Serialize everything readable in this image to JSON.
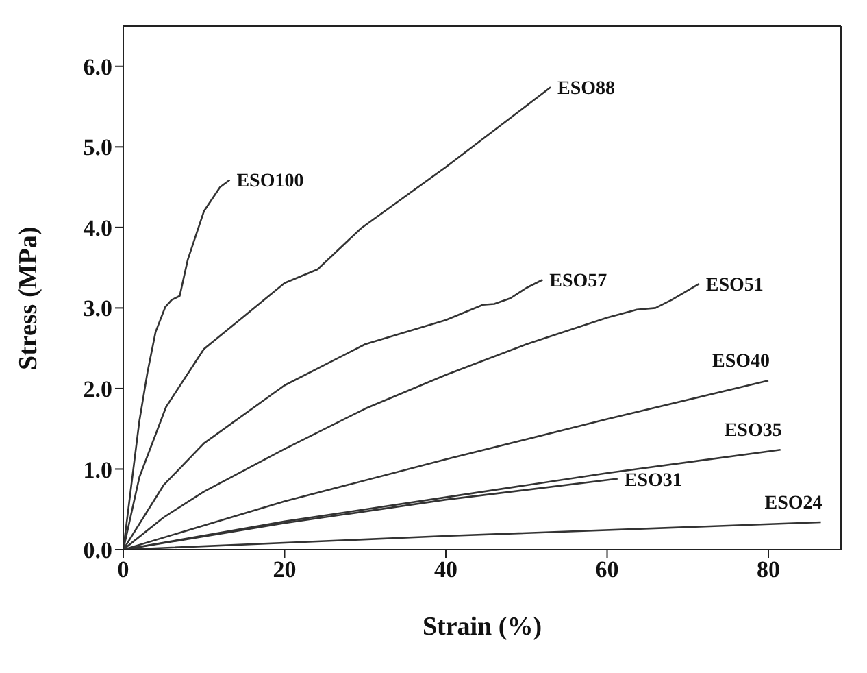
{
  "chart_data": {
    "type": "line",
    "xlabel": "Strain (%)",
    "ylabel": "Stress (MPa)",
    "xlim": [
      0,
      89
    ],
    "xticks": [
      0,
      20,
      40,
      60,
      80
    ],
    "ylim": [
      0,
      6.5
    ],
    "yticks": [
      {
        "value": 0,
        "label": "0.0"
      },
      {
        "value": 1,
        "label": "1.0"
      },
      {
        "value": 2,
        "label": "2.0"
      },
      {
        "value": 3,
        "label": "3.0"
      },
      {
        "value": 4,
        "label": "4.0"
      },
      {
        "value": 5,
        "label": "5.0"
      },
      {
        "value": 6,
        "label": "6.0"
      }
    ],
    "legend": false,
    "marker": "none",
    "line_style": "solid",
    "series": [
      {
        "name": "ESO100",
        "color": "#333333",
        "x": [
          0,
          1,
          2,
          3,
          4,
          5.2,
          6,
          7,
          8,
          9,
          10,
          12,
          13.2
        ],
        "values": [
          0,
          0.8,
          1.6,
          2.2,
          2.7,
          3.01,
          3.1,
          3.15,
          3.6,
          3.9,
          4.2,
          4.5,
          4.59
        ]
      },
      {
        "name": "ESO88",
        "color": "#333333",
        "x": [
          0,
          2,
          5.3,
          10,
          15,
          20,
          24.1,
          29.5,
          40,
          53
        ],
        "values": [
          0,
          0.9,
          1.77,
          2.49,
          2.9,
          3.31,
          3.48,
          3.99,
          4.75,
          5.74
        ]
      },
      {
        "name": "ESO57",
        "color": "#333333",
        "x": [
          0,
          5,
          10,
          20,
          30,
          40,
          44.6,
          46,
          48,
          50,
          52
        ],
        "values": [
          0,
          0.8,
          1.32,
          2.04,
          2.55,
          2.85,
          3.04,
          3.05,
          3.12,
          3.25,
          3.35
        ]
      },
      {
        "name": "ESO51",
        "color": "#333333",
        "x": [
          0,
          5,
          10,
          20,
          30,
          40,
          50,
          60,
          63.7,
          66,
          68,
          71.4
        ],
        "values": [
          0,
          0.4,
          0.72,
          1.25,
          1.75,
          2.17,
          2.55,
          2.88,
          2.98,
          3.0,
          3.1,
          3.3
        ]
      },
      {
        "name": "ESO40",
        "color": "#333333",
        "x": [
          0,
          20,
          40,
          60,
          80
        ],
        "values": [
          0,
          0.6,
          1.12,
          1.62,
          2.1
        ]
      },
      {
        "name": "ESO35",
        "color": "#333333",
        "x": [
          0,
          20,
          40,
          60,
          81.5
        ],
        "values": [
          0,
          0.35,
          0.65,
          0.95,
          1.24
        ]
      },
      {
        "name": "ESO31",
        "color": "#333333",
        "x": [
          0,
          20,
          40,
          61.3
        ],
        "values": [
          0,
          0.33,
          0.62,
          0.88
        ]
      },
      {
        "name": "ESO24",
        "color": "#333333",
        "x": [
          0,
          40,
          86.5
        ],
        "values": [
          0,
          0.17,
          0.34
        ]
      }
    ]
  }
}
